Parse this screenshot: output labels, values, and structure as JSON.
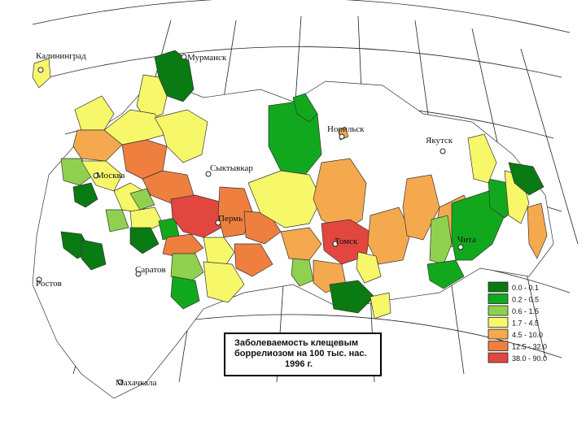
{
  "colors": {
    "c0": "#0a7a12",
    "c1": "#12a81e",
    "c2": "#8fd14f",
    "c3": "#f7f76a",
    "c4": "#f5a94e",
    "c5": "#ef7f3f",
    "c6": "#e2473f"
  },
  "cities": {
    "kaliningrad": "Калининград",
    "murmansk": "Мурманск",
    "norilsk": "Норильск",
    "yakutsk": "Якутск",
    "moskva": "Москва",
    "syktyvkar": "Сыктывкар",
    "perm": "Пермь",
    "tomsk": "Томск",
    "chita": "Чита",
    "saratov": "Саратов",
    "rostov": "Ростов",
    "makhachkala": "Махачкала"
  },
  "legend": [
    {
      "label": "0.0 - 0.1",
      "color": "c0"
    },
    {
      "label": "0.2 - 0.5",
      "color": "c1"
    },
    {
      "label": "0.6 - 1.5",
      "color": "c2"
    },
    {
      "label": "1.7 - 4.5",
      "color": "c3"
    },
    {
      "label": "4.5 - 10.0",
      "color": "c4"
    },
    {
      "label": "12.5 - 32.0",
      "color": "c5"
    },
    {
      "label": "38.0 - 90.0",
      "color": "c6"
    }
  ],
  "title": {
    "line1": "Заболеваемость клещевым",
    "line2": "боррелиозом на 100 тыс. нас.",
    "line3": "1996 г."
  }
}
